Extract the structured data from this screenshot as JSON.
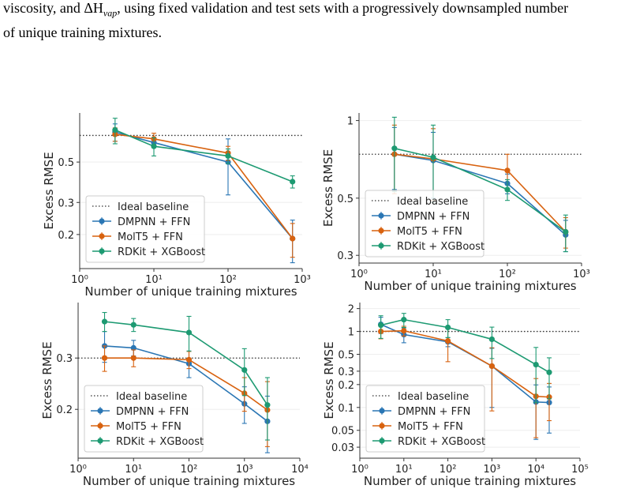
{
  "caption": {
    "parts": [
      "viscosity, and ΔH",
      "vap",
      ", using fixed validation and test sets with a progressively downsampled number",
      "of unique training mixtures."
    ]
  },
  "chart_data": [
    {
      "type": "line",
      "xlabel": "Number of unique training mixtures",
      "ylabel": "Excess RMSE",
      "xscale": "log",
      "yscale": "log",
      "grid": true,
      "legend": "lower left",
      "baseline_label": "Ideal baseline",
      "baseline": 0.7,
      "x": [
        3,
        10,
        100,
        740
      ],
      "xlim": [
        1,
        1000
      ],
      "xticks": [
        {
          "value": 1,
          "label": "10⁰"
        },
        {
          "value": 10,
          "label": "10¹"
        },
        {
          "value": 100,
          "label": "10²"
        },
        {
          "value": 1000,
          "label": "10³"
        }
      ],
      "ylim": [
        0.13,
        0.93
      ],
      "yticks": [
        0.2,
        0.3,
        0.5
      ],
      "series": [
        {
          "name": "DMPNN + FFN",
          "color": "#2a76b4",
          "values": [
            0.73,
            0.64,
            0.5,
            0.19
          ],
          "errors": [
            0.08,
            0.04,
            0.17,
            0.05
          ]
        },
        {
          "name": "MolT5 + FFN",
          "color": "#d8620f",
          "values": [
            0.71,
            0.67,
            0.56,
            0.19
          ],
          "errors": [
            0.06,
            0.05,
            0.05,
            0.04
          ]
        },
        {
          "name": "RDKit + XGBoost",
          "color": "#1d9a72",
          "values": [
            0.75,
            0.61,
            0.54,
            0.39
          ],
          "errors": [
            0.12,
            0.07,
            0.05,
            0.03
          ]
        }
      ]
    },
    {
      "type": "line",
      "xlabel": "Number of unique training mixtures",
      "ylabel": "Excess RMSE",
      "xscale": "log",
      "yscale": "log",
      "grid": true,
      "legend": "lower left",
      "baseline_label": "Ideal baseline",
      "baseline": 0.74,
      "x": [
        3,
        10,
        100,
        610
      ],
      "xlim": [
        1,
        1000
      ],
      "xticks": [
        {
          "value": 1,
          "label": "10⁰"
        },
        {
          "value": 10,
          "label": "10¹"
        },
        {
          "value": 100,
          "label": "10²"
        },
        {
          "value": 1000,
          "label": "10³"
        }
      ],
      "ylim": [
        0.28,
        1.07
      ],
      "yticks": [
        0.3,
        0.5,
        1
      ],
      "series": [
        {
          "name": "DMPNN + FFN",
          "color": "#2a76b4",
          "values": [
            0.74,
            0.7,
            0.57,
            0.36
          ],
          "errors": [
            0.2,
            0.2,
            0.05,
            0.05
          ]
        },
        {
          "name": "MolT5 + FFN",
          "color": "#d8620f",
          "values": [
            0.74,
            0.71,
            0.64,
            0.37
          ],
          "errors": [
            0.22,
            0.22,
            0.1,
            0.05
          ]
        },
        {
          "name": "RDKit + XGBoost",
          "color": "#1d9a72",
          "values": [
            0.78,
            0.72,
            0.54,
            0.37
          ],
          "errors": [
            0.25,
            0.24,
            0.05,
            0.06
          ]
        }
      ]
    },
    {
      "type": "line",
      "xlabel": "Number of unique training mixtures",
      "ylabel": "Excess RMSE",
      "xscale": "log",
      "yscale": "log",
      "grid": true,
      "legend": "lower left",
      "baseline_label": "Ideal baseline",
      "baseline": 0.3,
      "x": [
        3,
        10,
        100,
        1000,
        2600
      ],
      "xlim": [
        1,
        10000
      ],
      "xticks": [
        {
          "value": 1,
          "label": "10⁰"
        },
        {
          "value": 10,
          "label": "10¹"
        },
        {
          "value": 100,
          "label": "10²"
        },
        {
          "value": 1000,
          "label": "10³"
        },
        {
          "value": 10000,
          "label": "10⁴"
        }
      ],
      "ylim": [
        0.136,
        0.465
      ],
      "yticks": [
        0.2,
        0.3
      ],
      "series": [
        {
          "name": "DMPNN + FFN",
          "color": "#2a76b4",
          "values": [
            0.33,
            0.325,
            0.287,
            0.209,
            0.182
          ],
          "errors": [
            0.04,
            0.02,
            0.03,
            0.03,
            0.04
          ]
        },
        {
          "name": "MolT5 + FFN",
          "color": "#d8620f",
          "values": [
            0.3,
            0.3,
            0.296,
            0.227,
            0.199
          ],
          "errors": [
            0.03,
            0.02,
            0.02,
            0.03,
            0.05
          ]
        },
        {
          "name": "RDKit + XGBoost",
          "color": "#1d9a72",
          "values": [
            0.4,
            0.39,
            0.367,
            0.273,
            0.207
          ],
          "errors": [
            0.03,
            0.02,
            0.05,
            0.05,
            0.05
          ]
        }
      ]
    },
    {
      "type": "line",
      "xlabel": "Number of unique training mixtures",
      "ylabel": "Excess RMSE",
      "xscale": "log",
      "yscale": "log",
      "grid": true,
      "legend": "lower left",
      "baseline_label": "Ideal baseline",
      "baseline": 1,
      "x": [
        3,
        10,
        100,
        1000,
        10000,
        20000
      ],
      "xlim": [
        1,
        100000
      ],
      "xticks": [
        {
          "value": 1,
          "label": "10⁰"
        },
        {
          "value": 10,
          "label": "10¹"
        },
        {
          "value": 100,
          "label": "10²"
        },
        {
          "value": 1000,
          "label": "10³"
        },
        {
          "value": 10000,
          "label": "10⁴"
        },
        {
          "value": 100000,
          "label": "10⁵"
        }
      ],
      "ylim": [
        0.0215,
        2.4
      ],
      "yticks": [
        0.03,
        0.05,
        0.1,
        0.2,
        0.3,
        0.5,
        1,
        2
      ],
      "series": [
        {
          "name": "DMPNN + FFN",
          "color": "#2a76b4",
          "values": [
            1.24,
            0.91,
            0.73,
            0.35,
            0.118,
            0.116
          ],
          "errors": [
            0.3,
            0.2,
            0.1,
            0.25,
            0.08,
            0.07
          ]
        },
        {
          "name": "MolT5 + FFN",
          "color": "#d8620f",
          "values": [
            1.0,
            1.02,
            0.75,
            0.35,
            0.14,
            0.137
          ],
          "errors": [
            0.2,
            0.15,
            0.35,
            0.26,
            0.1,
            0.07
          ]
        },
        {
          "name": "RDKit + XGBoost",
          "color": "#1d9a72",
          "values": [
            1.21,
            1.43,
            1.13,
            0.79,
            0.366,
            0.29
          ],
          "errors": [
            0.4,
            0.3,
            0.3,
            0.35,
            0.25,
            0.16
          ]
        }
      ]
    }
  ]
}
